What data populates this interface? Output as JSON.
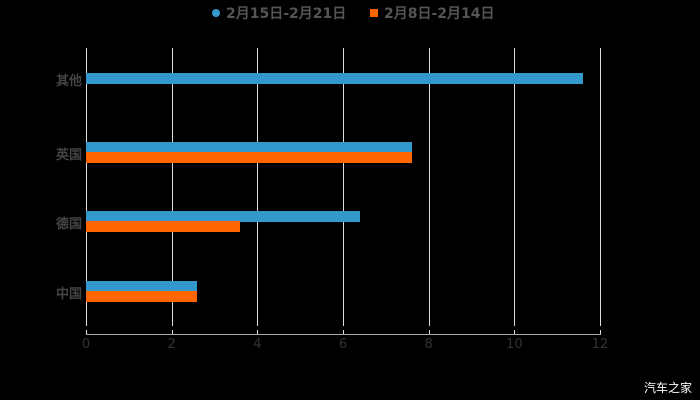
{
  "chart_data": {
    "type": "bar",
    "orientation": "horizontal",
    "categories": [
      "其他",
      "英国",
      "德国",
      "中国"
    ],
    "series": [
      {
        "name": "2月15日-2月21日",
        "color": "#3399cc",
        "values": [
          11.6,
          7.6,
          6.4,
          2.6
        ]
      },
      {
        "name": "2月8日-2月14日",
        "color": "#ff6600",
        "values": [
          null,
          7.6,
          3.6,
          2.6
        ]
      }
    ],
    "title": "",
    "xlabel": "",
    "ylabel": "",
    "xlim": [
      0,
      12
    ],
    "x_ticks": [
      "0",
      "2",
      "4",
      "6",
      "8",
      "10",
      "12"
    ],
    "grid": true,
    "legend_position": "top"
  },
  "legend": {
    "items": [
      {
        "label": "2月15日-2月21日",
        "color": "#3399cc",
        "marker": "circle"
      },
      {
        "label": "2月8日-2月14日",
        "color": "#ff6600",
        "marker": "square"
      }
    ]
  },
  "watermark": "汽车之家"
}
